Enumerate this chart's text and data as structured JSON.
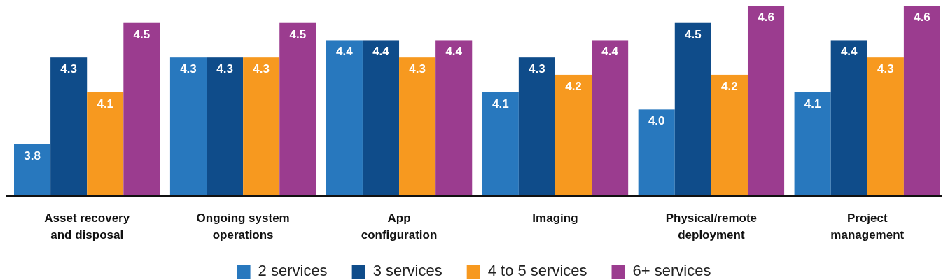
{
  "chart_data": {
    "type": "bar",
    "categories": [
      "Asset recovery and disposal",
      "Ongoing system operations",
      "App configuration",
      "Imaging",
      "Physical/remote deployment",
      "Project management"
    ],
    "series": [
      {
        "name": "2 services",
        "color": "#2878be",
        "values": [
          3.8,
          4.3,
          4.4,
          4.1,
          4.0,
          4.1
        ],
        "value_labels": [
          "3.8",
          "4.3",
          "4.4",
          "4.1",
          "4.0",
          "4.1"
        ]
      },
      {
        "name": "3 services",
        "color": "#0f4c8a",
        "values": [
          4.3,
          4.3,
          4.4,
          4.3,
          4.5,
          4.4
        ],
        "value_labels": [
          "4.3",
          "4.3",
          "4.4",
          "4.3",
          "4.5",
          "4.4"
        ]
      },
      {
        "name": "4 to 5 services",
        "color": "#f7991f",
        "values": [
          4.1,
          4.3,
          4.3,
          4.2,
          4.2,
          4.3
        ],
        "value_labels": [
          "4.1",
          "4.3",
          "4.3",
          "4.2",
          "4.2",
          "4.3"
        ]
      },
      {
        "name": "6+ services",
        "color": "#9b3c8f",
        "values": [
          4.5,
          4.5,
          4.4,
          4.4,
          4.6,
          4.6
        ],
        "value_labels": [
          "4.5",
          "4.5",
          "4.4",
          "4.4",
          "4.6",
          "4.6"
        ]
      }
    ],
    "ylim": [
      3.5,
      4.6
    ],
    "tick_labels": "x",
    "legend": "bottom"
  }
}
